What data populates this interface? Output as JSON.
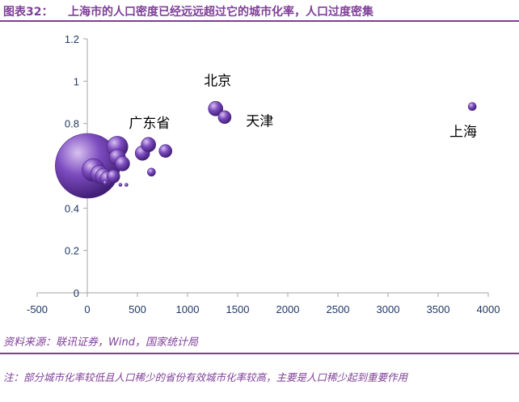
{
  "title": {
    "figure_number": "图表32：",
    "text": "上海市的人口密度已经远远超过它的城市化率，人口过度密集"
  },
  "footer": {
    "source": "资料来源：联讯证券，Wind，国家统计局",
    "note": "注：部分城市化率较低且人口稀少的省份有效城市化率较高，主要是人口稀少起到重要作用"
  },
  "colors": {
    "accent": "#7f3f98",
    "bubble": "#6a3fa0",
    "axis_text": "#1f3864"
  },
  "chart_data": {
    "type": "scatter",
    "bubble": true,
    "xlim": [
      -500,
      4000
    ],
    "ylim": [
      0,
      1.2
    ],
    "x_ticks": [
      -500,
      0,
      500,
      1000,
      1500,
      2000,
      2500,
      3000,
      3500,
      4000
    ],
    "y_ticks": [
      0,
      0.2,
      0.4,
      0.6,
      0.8,
      1,
      1.2
    ],
    "y_tick_labels": [
      "0",
      "0.2",
      "0.4",
      "0.6",
      "0.8",
      "1",
      "1.2"
    ],
    "xlabel": "",
    "ylabel": "",
    "grid": false,
    "legend": "none",
    "points": [
      {
        "x": 3,
        "y": 0.6,
        "size": 40
      },
      {
        "x": 60,
        "y": 0.58,
        "size": 14
      },
      {
        "x": 120,
        "y": 0.56,
        "size": 11
      },
      {
        "x": 160,
        "y": 0.55,
        "size": 10
      },
      {
        "x": 200,
        "y": 0.54,
        "size": 9
      },
      {
        "x": 260,
        "y": 0.55,
        "size": 8
      },
      {
        "x": 300,
        "y": 0.69,
        "size": 13
      },
      {
        "x": 300,
        "y": 0.64,
        "size": 10
      },
      {
        "x": 350,
        "y": 0.61,
        "size": 9
      },
      {
        "x": 550,
        "y": 0.66,
        "size": 9
      },
      {
        "x": 610,
        "y": 0.7,
        "size": 9
      },
      {
        "x": 780,
        "y": 0.67,
        "size": 8
      },
      {
        "x": 640,
        "y": 0.57,
        "size": 5
      },
      {
        "x": 180,
        "y": 0.52,
        "size": 3
      },
      {
        "x": 330,
        "y": 0.51,
        "size": 2
      },
      {
        "x": 390,
        "y": 0.51,
        "size": 2
      },
      {
        "x": 1280,
        "y": 0.87,
        "size": 9
      },
      {
        "x": 1370,
        "y": 0.83,
        "size": 8
      },
      {
        "x": 3840,
        "y": 0.88,
        "size": 5
      }
    ],
    "annotations": [
      {
        "text": "北京",
        "x": 1300,
        "y": 0.98
      },
      {
        "text": "天津",
        "x": 1720,
        "y": 0.79
      },
      {
        "text": "广东省",
        "x": 620,
        "y": 0.78
      },
      {
        "text": "上海",
        "x": 3750,
        "y": 0.74
      }
    ]
  }
}
